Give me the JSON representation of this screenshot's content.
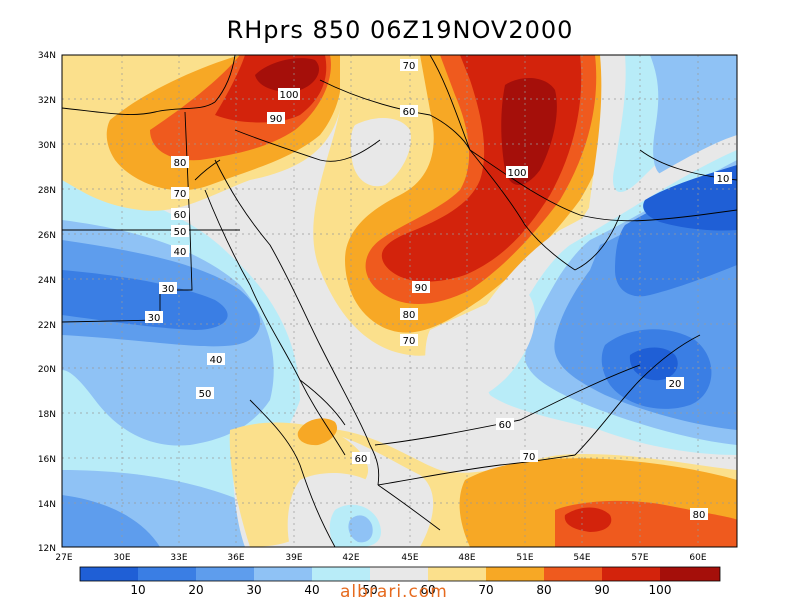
{
  "map": {
    "title": "RHprs 850 06Z19NOV2000",
    "latitude_labels": [
      "34N",
      "32N",
      "30N",
      "28N",
      "26N",
      "24N",
      "22N",
      "20N",
      "18N",
      "16N",
      "14N",
      "12N"
    ],
    "longitude_labels": [
      "27E",
      "30E",
      "33E",
      "36E",
      "39E",
      "42E",
      "45E",
      "48E",
      "51E",
      "54E",
      "57E",
      "60E"
    ],
    "contour_labels": [
      {
        "text": "70"
      },
      {
        "text": "100"
      },
      {
        "text": "90"
      },
      {
        "text": "60"
      },
      {
        "text": "80"
      },
      {
        "text": "100"
      },
      {
        "text": "10"
      },
      {
        "text": "70"
      },
      {
        "text": "60"
      },
      {
        "text": "50"
      },
      {
        "text": "40"
      },
      {
        "text": "30"
      },
      {
        "text": "30"
      },
      {
        "text": "40"
      },
      {
        "text": "50"
      },
      {
        "text": "90"
      },
      {
        "text": "80"
      },
      {
        "text": "70"
      },
      {
        "text": "20"
      },
      {
        "text": "60"
      },
      {
        "text": "70"
      },
      {
        "text": "60"
      },
      {
        "text": "80"
      }
    ],
    "colorbar": {
      "labels": [
        "10",
        "20",
        "30",
        "40",
        "50",
        "60",
        "70",
        "80",
        "90",
        "100"
      ],
      "colors": [
        "#1f5fd6",
        "#3a7ee4",
        "#5e9ded",
        "#8fc2f5",
        "#b8ecf8",
        "#e8e8e8",
        "#fbe08c",
        "#f7a825",
        "#ef5a1e",
        "#d3230c",
        "#a50f0a"
      ]
    },
    "field_colors": {
      "c10": "#1f5fd6",
      "c20": "#3a7ee4",
      "c30": "#5e9ded",
      "c40": "#8fc2f5",
      "c50": "#b8ecf8",
      "c60": "#e8e8e8",
      "c70": "#fbe08c",
      "c80": "#f7a825",
      "c90": "#ef5a1e",
      "c100": "#d3230c",
      "c110": "#a50f0a"
    },
    "watermark": "albrari.com"
  }
}
